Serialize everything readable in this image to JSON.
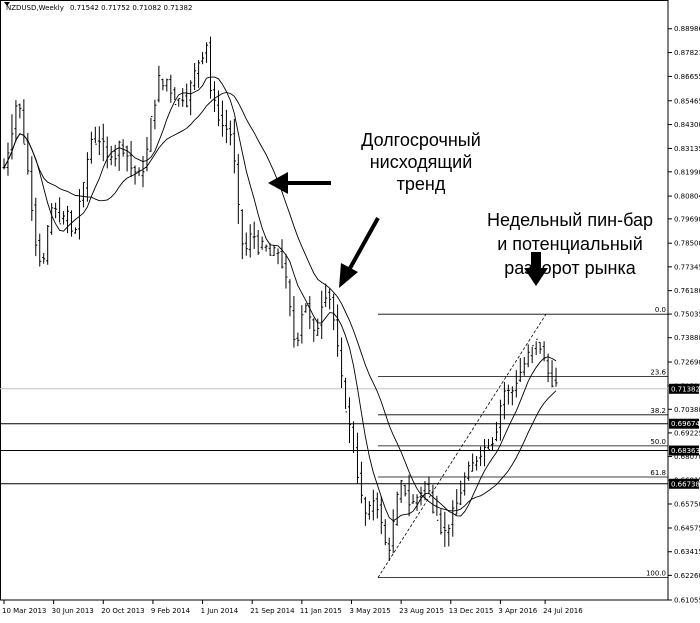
{
  "header": {
    "symbol": "NZDUSD,Weekly",
    "ohlc": "0.71542 0.71752 0.71082 0.71382"
  },
  "chart_data": {
    "type": "candlestick",
    "title": "NZDUSD,Weekly",
    "ylim": [
      0.61055,
      0.9
    ],
    "y_ticks": [
      "0.88986",
      "0.87821",
      "0.86655",
      "0.85465",
      "0.84300",
      "0.83135",
      "0.81990",
      "0.80804",
      "0.79690",
      "0.78500",
      "0.77345",
      "0.76180",
      "0.75035",
      "0.73880",
      "0.72690",
      "0.71525",
      "0.70380",
      "0.69225",
      "0.68070",
      "0.66915",
      "0.65750",
      "0.64575",
      "0.63415",
      "0.62260",
      "0.61055"
    ],
    "x_ticks": [
      "10 Mar 2013",
      "30 Jun 2013",
      "20 Oct 2013",
      "9 Feb 2014",
      "1 Jun 2014",
      "21 Sep 2014",
      "11 Jan 2015",
      "3 May 2015",
      "23 Aug 2015",
      "13 Dec 2015",
      "3 Apr 2016",
      "24 Jul 2016"
    ],
    "current_price": "0.71382",
    "horizontal_levels": [
      "0.69674",
      "0.68363",
      "0.66738"
    ],
    "fibonacci": {
      "high": 0.7503,
      "low": 0.6215,
      "levels": [
        {
          "label": "0.0",
          "price": 0.7503
        },
        {
          "label": "23.6",
          "price": 0.7199
        },
        {
          "label": "38.2",
          "price": 0.7011
        },
        {
          "label": "50.0",
          "price": 0.6859
        },
        {
          "label": "61.8",
          "price": 0.6707
        },
        {
          "label": "100.0",
          "price": 0.6215
        }
      ]
    },
    "price_path": [
      [
        0,
        0.822
      ],
      [
        6,
        0.835
      ],
      [
        11,
        0.85
      ],
      [
        14,
        0.858
      ],
      [
        17,
        0.846
      ],
      [
        20,
        0.835
      ],
      [
        24,
        0.82
      ],
      [
        27,
        0.808
      ],
      [
        30,
        0.795
      ],
      [
        33,
        0.782
      ],
      [
        36,
        0.778
      ],
      [
        39,
        0.774
      ],
      [
        42,
        0.781
      ],
      [
        45,
        0.795
      ],
      [
        48,
        0.802
      ],
      [
        52,
        0.8
      ],
      [
        56,
        0.797
      ],
      [
        60,
        0.796
      ],
      [
        64,
        0.8
      ],
      [
        68,
        0.79
      ],
      [
        72,
        0.792
      ],
      [
        76,
        0.806
      ],
      [
        80,
        0.812
      ],
      [
        84,
        0.826
      ],
      [
        88,
        0.836
      ],
      [
        92,
        0.835
      ],
      [
        96,
        0.836
      ],
      [
        100,
        0.832
      ],
      [
        104,
        0.826
      ],
      [
        108,
        0.83
      ],
      [
        112,
        0.828
      ],
      [
        116,
        0.833
      ],
      [
        120,
        0.832
      ],
      [
        124,
        0.828
      ],
      [
        128,
        0.822
      ],
      [
        132,
        0.82
      ],
      [
        136,
        0.818
      ],
      [
        140,
        0.822
      ],
      [
        144,
        0.83
      ],
      [
        148,
        0.845
      ],
      [
        152,
        0.855
      ],
      [
        156,
        0.865
      ],
      [
        160,
        0.862
      ],
      [
        164,
        0.865
      ],
      [
        168,
        0.86
      ],
      [
        172,
        0.855
      ],
      [
        176,
        0.855
      ],
      [
        180,
        0.857
      ],
      [
        184,
        0.855
      ],
      [
        188,
        0.862
      ],
      [
        192,
        0.868
      ],
      [
        196,
        0.874
      ],
      [
        200,
        0.878
      ],
      [
        204,
        0.883
      ],
      [
        206,
        0.882
      ],
      [
        208,
        0.86
      ],
      [
        210,
        0.855
      ],
      [
        214,
        0.85
      ],
      [
        218,
        0.845
      ],
      [
        222,
        0.84
      ],
      [
        226,
        0.842
      ],
      [
        230,
        0.835
      ],
      [
        234,
        0.812
      ],
      [
        238,
        0.79
      ],
      [
        242,
        0.78
      ],
      [
        246,
        0.784
      ],
      [
        250,
        0.792
      ],
      [
        254,
        0.785
      ],
      [
        258,
        0.781
      ],
      [
        262,
        0.785
      ],
      [
        266,
        0.78
      ],
      [
        270,
        0.778
      ],
      [
        274,
        0.782
      ],
      [
        278,
        0.78
      ],
      [
        282,
        0.77
      ],
      [
        286,
        0.762
      ],
      [
        290,
        0.742
      ],
      [
        294,
        0.735
      ],
      [
        298,
        0.745
      ],
      [
        302,
        0.758
      ],
      [
        306,
        0.753
      ],
      [
        310,
        0.742
      ],
      [
        314,
        0.738
      ],
      [
        318,
        0.752
      ],
      [
        322,
        0.76
      ],
      [
        326,
        0.762
      ],
      [
        330,
        0.755
      ],
      [
        334,
        0.74
      ],
      [
        338,
        0.725
      ],
      [
        342,
        0.71
      ],
      [
        346,
        0.7
      ],
      [
        350,
        0.69
      ],
      [
        354,
        0.68
      ],
      [
        358,
        0.665
      ],
      [
        362,
        0.655
      ],
      [
        366,
        0.65
      ],
      [
        370,
        0.658
      ],
      [
        374,
        0.662
      ],
      [
        378,
        0.652
      ],
      [
        382,
        0.642
      ],
      [
        386,
        0.634
      ],
      [
        390,
        0.64
      ],
      [
        394,
        0.655
      ],
      [
        398,
        0.665
      ],
      [
        402,
        0.668
      ],
      [
        406,
        0.66
      ],
      [
        410,
        0.656
      ],
      [
        414,
        0.66
      ],
      [
        418,
        0.662
      ],
      [
        422,
        0.666
      ],
      [
        426,
        0.668
      ],
      [
        430,
        0.658
      ],
      [
        434,
        0.655
      ],
      [
        438,
        0.65
      ],
      [
        442,
        0.642
      ],
      [
        446,
        0.645
      ],
      [
        450,
        0.65
      ],
      [
        454,
        0.655
      ],
      [
        458,
        0.66
      ],
      [
        462,
        0.668
      ],
      [
        466,
        0.672
      ],
      [
        470,
        0.675
      ],
      [
        474,
        0.678
      ],
      [
        478,
        0.682
      ],
      [
        482,
        0.685
      ],
      [
        486,
        0.685
      ],
      [
        490,
        0.688
      ],
      [
        494,
        0.69
      ],
      [
        498,
        0.7
      ],
      [
        502,
        0.712
      ],
      [
        506,
        0.714
      ],
      [
        510,
        0.71
      ],
      [
        514,
        0.716
      ],
      [
        518,
        0.72
      ],
      [
        522,
        0.724
      ],
      [
        526,
        0.728
      ],
      [
        530,
        0.732
      ],
      [
        534,
        0.735
      ],
      [
        538,
        0.738
      ],
      [
        542,
        0.731
      ],
      [
        546,
        0.724
      ],
      [
        550,
        0.719
      ],
      [
        554,
        0.717
      ],
      [
        558,
        0.714
      ]
    ],
    "moving_averages": [
      "fast",
      "slow"
    ]
  },
  "annotations": {
    "trend_lines": [
      "Долгосрочный",
      "нисходящий",
      "тренд"
    ],
    "pinbar_lines": [
      "Недельный пин-бар",
      "и потенциальный",
      "разворот рынка"
    ]
  },
  "colors": {
    "background": "#ffffff",
    "foreground": "#000000",
    "grid": "#d0d0d0",
    "current_line": "#bfbfbf",
    "level_label_bg": "#000000",
    "level_label_fg": "#ffffff"
  }
}
